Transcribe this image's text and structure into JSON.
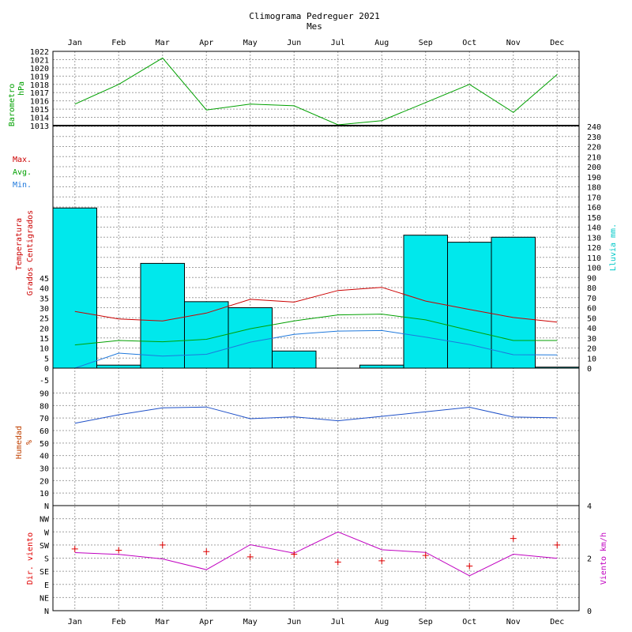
{
  "title": "Climograma Pedreguer 2021",
  "subtitle": "Mes",
  "months": [
    "Jan",
    "Feb",
    "Mar",
    "Apr",
    "May",
    "Jun",
    "Jul",
    "Aug",
    "Sep",
    "Oct",
    "Nov",
    "Dec"
  ],
  "colors": {
    "barometer": "#00a000",
    "max": "#cc0000",
    "avg": "#00a000",
    "min": "#1e78dc",
    "rain_fill": "#00e8ec",
    "humidity": "#1e50c8",
    "humidity_label": "#c04000",
    "wind_dir": "#e00000",
    "wind_speed": "#c000c0",
    "temp_label": "#cc0000",
    "rain_label": "#00c8c8",
    "dir_label": "#e00000",
    "speed_label": "#c000c0"
  },
  "labels": {
    "barometer": [
      "Barometro",
      "hPa"
    ],
    "temp_legend_max": "Max.",
    "temp_legend_avg": "Avg.",
    "temp_legend_min": "Min.",
    "temperature": [
      "Temperatura",
      "Grados Centigrados"
    ],
    "rain": "Lluvia mm.",
    "humidity": [
      "Humedad",
      "%"
    ],
    "wind_dir": "Dir. viento",
    "wind_speed": "Viento km/h"
  },
  "chart_data": [
    {
      "type": "line",
      "title": "",
      "ylabel": "Barometro hPa",
      "ylim": [
        1013,
        1022
      ],
      "yticks": [
        "1013",
        "1014",
        "1015",
        "1016",
        "1017",
        "1018",
        "1019",
        "1020",
        "1021",
        "1022"
      ],
      "series": [
        {
          "name": "",
          "values": [
            1015.6,
            1018.0,
            1021.2,
            1014.9,
            1015.6,
            1015.4,
            1013.1,
            1013.6,
            1015.8,
            1018.0,
            1014.6,
            1019.2
          ]
        }
      ]
    },
    {
      "type": "bar",
      "ylabel": "Lluvia mm.",
      "ylim": [
        0,
        240
      ],
      "yticks": [
        "0",
        "10",
        "20",
        "30",
        "40",
        "50",
        "60",
        "70",
        "80",
        "90",
        "100",
        "110",
        "120",
        "130",
        "140",
        "150",
        "160",
        "170",
        "180",
        "190",
        "200",
        "210",
        "220",
        "230",
        "240"
      ],
      "values": [
        159,
        3,
        104,
        66,
        60,
        17,
        0,
        3,
        132,
        125,
        130,
        1
      ]
    },
    {
      "type": "line",
      "ylabel": "Temperatura Grados Centigrados",
      "ylim": [
        0,
        45
      ],
      "yticks": [
        "0",
        "5",
        "10",
        "15",
        "20",
        "25",
        "30",
        "35",
        "40",
        "45"
      ],
      "series": [
        {
          "name": "Max.",
          "values": [
            28.3,
            24.6,
            23.6,
            27.5,
            34.4,
            33.0,
            38.8,
            40.4,
            33.5,
            29.3,
            25.3,
            23.0
          ]
        },
        {
          "name": "Avg.",
          "values": [
            11.6,
            13.8,
            13.2,
            14.4,
            19.7,
            23.6,
            26.6,
            27.0,
            24.1,
            18.9,
            13.8,
            13.8
          ]
        },
        {
          "name": "Min.",
          "values": [
            0,
            7.5,
            6.0,
            6.9,
            13.0,
            16.9,
            18.5,
            18.8,
            15.5,
            11.8,
            6.7,
            6.6
          ]
        }
      ]
    },
    {
      "type": "line",
      "ylabel": "Humedad %",
      "ylim": [
        0,
        95
      ],
      "yticks": [
        "N",
        "10",
        "20",
        "30",
        "40",
        "50",
        "60",
        "70",
        "80",
        "90",
        "-5"
      ],
      "series": [
        {
          "name": "",
          "values": [
            65.8,
            72.6,
            78.2,
            78.8,
            69.5,
            71.0,
            67.8,
            71.4,
            75.0,
            78.6,
            70.8,
            70.2
          ]
        }
      ]
    },
    {
      "type": "scatter",
      "ylabel": "Dir. viento",
      "ylim": [
        0,
        8
      ],
      "yticks": [
        "N",
        "NE",
        "E",
        "SE",
        "S",
        "SW",
        "W",
        "NW",
        ""
      ],
      "values": [
        4.7,
        4.6,
        5.0,
        4.5,
        4.1,
        4.3,
        3.7,
        3.8,
        4.2,
        3.4,
        5.5,
        5.0
      ]
    },
    {
      "type": "line",
      "ylabel": "Viento km/h",
      "ylim": [
        0,
        4
      ],
      "yticks": [
        "0",
        "2",
        "4"
      ],
      "series": [
        {
          "name": "",
          "values": [
            2.21,
            2.14,
            1.97,
            1.56,
            2.51,
            2.19,
            3.0,
            2.32,
            2.22,
            1.33,
            2.15,
            1.99
          ]
        }
      ]
    }
  ]
}
